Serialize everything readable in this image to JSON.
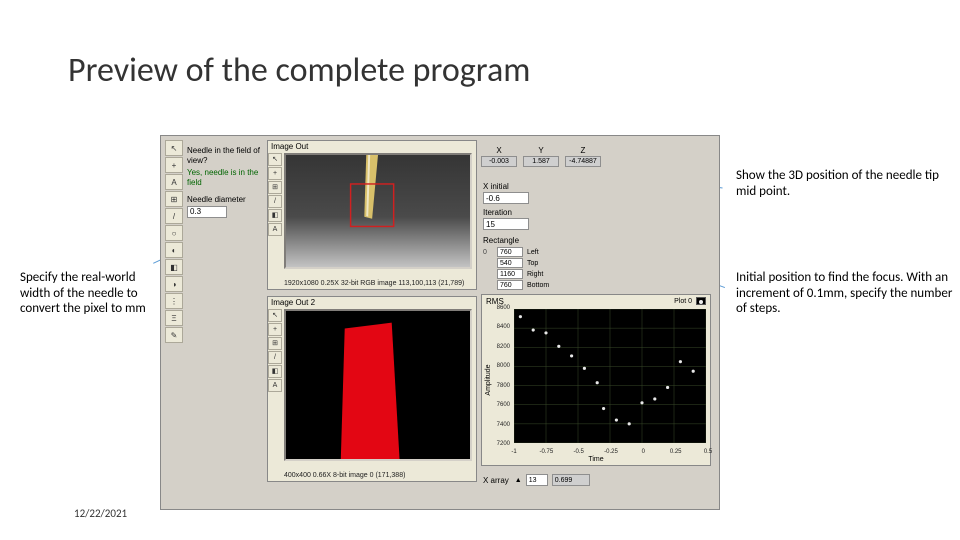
{
  "title": "Preview of the complete program",
  "date": "12/22/2021",
  "captions": {
    "left": "Specify the real-world width of the needle to convert the pixel to mm",
    "right_top": "Show the 3D position of the needle tip mid point.",
    "right_bottom": "Initial position to find the focus. With an increment of 0.1mm, specify the number of steps."
  },
  "toolbar_icons": [
    "↖",
    "+",
    "A",
    "⊞",
    "/",
    "○",
    "◐",
    "◧",
    "◑",
    "⋮",
    "Ξ",
    "✎"
  ],
  "info": {
    "q_label": "Needle in the field of view?",
    "q_value": "Yes, needle is in the field",
    "diam_label": "Needle diameter",
    "diam_value": "0.3"
  },
  "panel1": {
    "title": "Image Out",
    "caption": "1920x1080 0.25X 32-bit RGB image 113,100,113   (21,789)",
    "needle_color": "#d8c06a",
    "bg_from": "#353535",
    "bg_to": "#b3b3b3",
    "roi_color": "#d02020",
    "icons": [
      "↖",
      "+",
      "⊞",
      "/",
      "◧",
      "A"
    ]
  },
  "panel2": {
    "title": "Image Out 2",
    "caption": "400x400 0.66X 8-bit image 0   (171,388)",
    "bg": "#000000",
    "fg": "#e30613",
    "icons": [
      "↖",
      "+",
      "⊞",
      "/",
      "◧",
      "A"
    ]
  },
  "xyz": {
    "headers": [
      "X",
      "Y",
      "Z"
    ],
    "values": [
      "-0.003",
      "1.587",
      "-4.74887"
    ]
  },
  "xinitial": {
    "label": "X initial",
    "value": "-0.6"
  },
  "iteration": {
    "label": "Iteration",
    "value": "15"
  },
  "rectangle": {
    "label": "Rectangle",
    "rows": [
      [
        "0",
        "760",
        "Left"
      ],
      [
        "",
        "540",
        "Top"
      ],
      [
        "",
        "1160",
        "Right"
      ],
      [
        "",
        "760",
        "Bottom"
      ]
    ]
  },
  "chart": {
    "title": "RMS",
    "legend_label": "Plot 0",
    "ylabel": "Amplitude",
    "xlabel": "Time",
    "xlim": [
      -1.0,
      0.5
    ],
    "ylim": [
      7200,
      8600
    ],
    "yticks": [
      7200,
      7400,
      7600,
      7800,
      8000,
      8200,
      8400,
      8600
    ],
    "xticks": [
      -1.0,
      -0.75,
      -0.5,
      -0.25,
      0,
      0.25,
      0.5
    ],
    "grid_color": "#3a4a2a",
    "point_color": "#e8e8e8",
    "points": [
      [
        -0.95,
        8520
      ],
      [
        -0.85,
        8380
      ],
      [
        -0.75,
        8350
      ],
      [
        -0.65,
        8210
      ],
      [
        -0.55,
        8110
      ],
      [
        -0.45,
        7980
      ],
      [
        -0.35,
        7830
      ],
      [
        -0.3,
        7560
      ],
      [
        -0.2,
        7440
      ],
      [
        -0.1,
        7400
      ],
      [
        0.0,
        7620
      ],
      [
        0.1,
        7660
      ],
      [
        0.2,
        7780
      ],
      [
        0.3,
        8050
      ],
      [
        0.4,
        7950
      ]
    ]
  },
  "xarray": {
    "label": "X array",
    "index": "13",
    "value": "0.699"
  },
  "colors": {
    "panel_bg": "#d4d0c8",
    "arrow": "#5b9bd5"
  }
}
